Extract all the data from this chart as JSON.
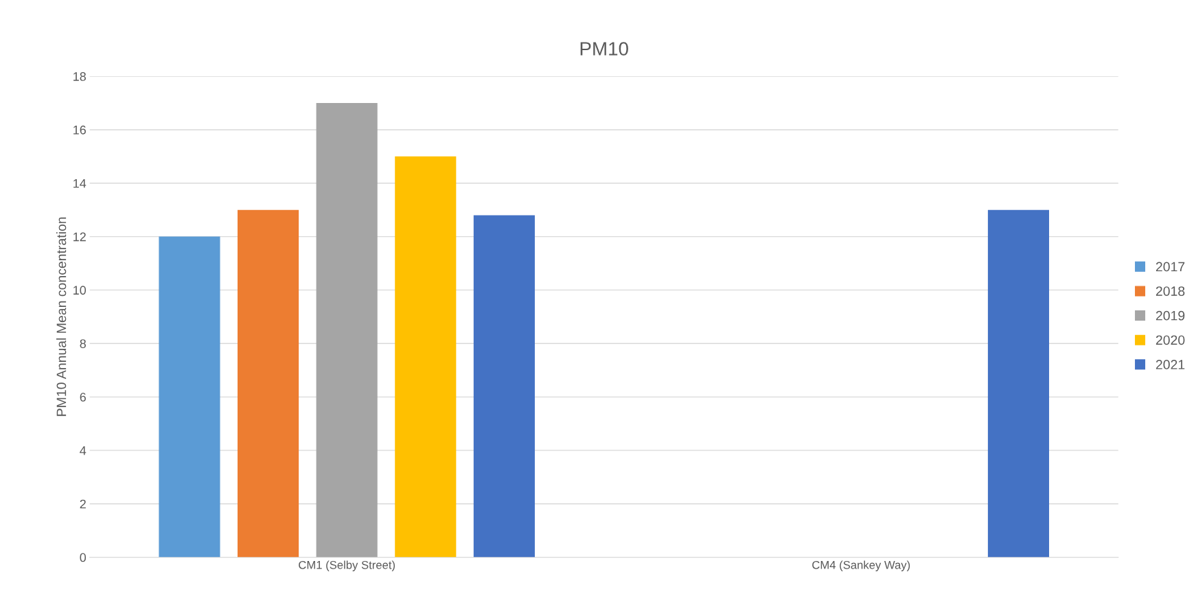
{
  "chart_data": {
    "type": "bar",
    "title": "PM10",
    "ylabel": "PM10 Annual Mean concentration",
    "categories": [
      "CM1 (Selby Street)",
      "CM4 (Sankey Way)"
    ],
    "series": [
      {
        "name": "2017",
        "color": "#5b9bd5",
        "values": [
          12,
          null
        ]
      },
      {
        "name": "2018",
        "color": "#ed7d31",
        "values": [
          13,
          null
        ]
      },
      {
        "name": "2019",
        "color": "#a5a5a5",
        "values": [
          17,
          null
        ]
      },
      {
        "name": "2020",
        "color": "#ffc000",
        "values": [
          15,
          null
        ]
      },
      {
        "name": "2021",
        "color": "#4472c4",
        "values": [
          12.8,
          13
        ]
      }
    ],
    "ylim": [
      0,
      18
    ],
    "yticks": [
      0,
      2,
      4,
      6,
      8,
      10,
      12,
      14,
      16,
      18
    ],
    "grid": "y",
    "legend": "right"
  }
}
